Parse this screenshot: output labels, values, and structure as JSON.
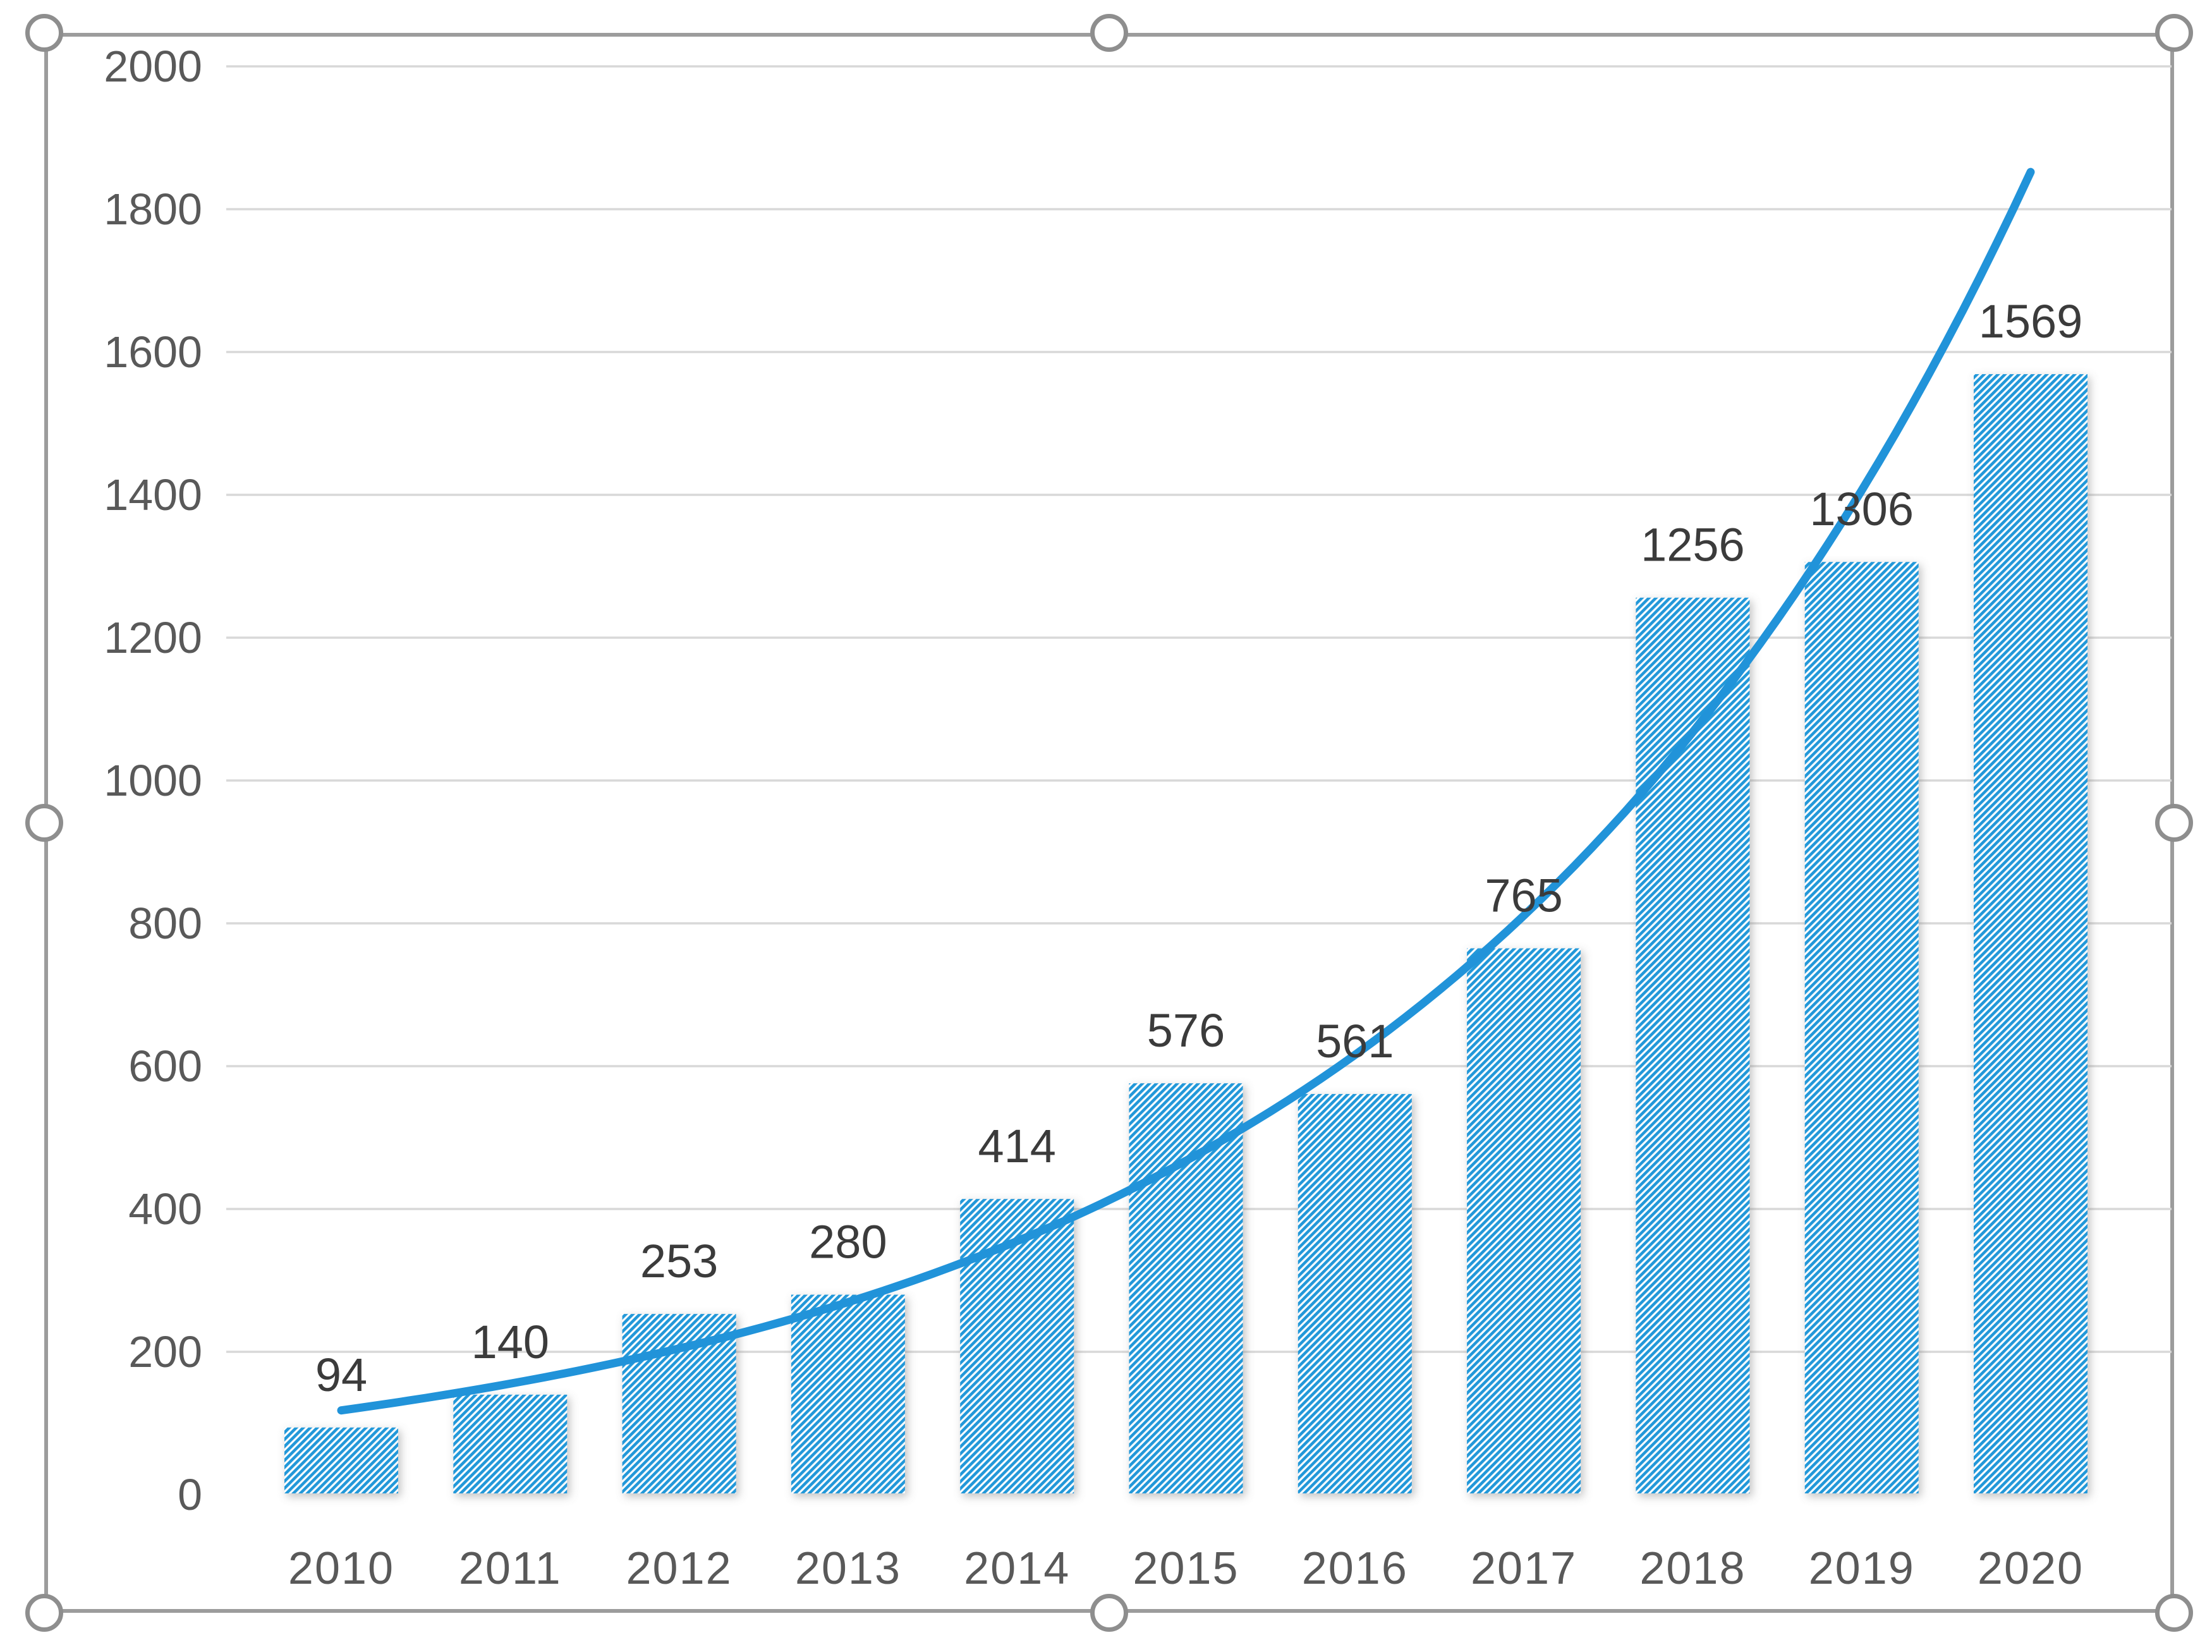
{
  "chart_data": {
    "type": "bar",
    "title": "",
    "xlabel": "",
    "ylabel": "",
    "categories": [
      "2010",
      "2011",
      "2012",
      "2013",
      "2014",
      "2015",
      "2016",
      "2017",
      "2018",
      "2019",
      "2020"
    ],
    "values": [
      94,
      140,
      253,
      280,
      414,
      576,
      561,
      765,
      1256,
      1306,
      1569
    ],
    "data_labels": [
      "94",
      "140",
      "253",
      "280",
      "414",
      "576",
      "561",
      "765",
      "1256",
      "1306",
      "1569"
    ],
    "series": [
      {
        "name": "bars-hatched",
        "type": "bar",
        "values": [
          94,
          140,
          253,
          280,
          414,
          576,
          561,
          765,
          1256,
          1306,
          1569
        ]
      },
      {
        "name": "trend-curve",
        "type": "line",
        "shape": "exponential",
        "start_value": 118,
        "end_value": 1852
      }
    ],
    "ylim": [
      0,
      2000
    ],
    "y_tick_step": 200,
    "y_tick_labels": [
      "0",
      "200",
      "400",
      "600",
      "800",
      "1000",
      "1200",
      "1400",
      "1600",
      "1800",
      "2000"
    ],
    "grid": true,
    "legend": false,
    "colors": {
      "bar_hatch_blue": "#2498d9",
      "trend_line_blue": "#2193d9",
      "gridline": "#d8d8d8",
      "axis_line": "#c6c6c6",
      "data_label": "#3b3b3b",
      "axis_label": "#595959",
      "chart_border": "#9c9c9c",
      "selection_handle": "#8e8e8e",
      "background": "#ffffff"
    }
  },
  "selection": {
    "state": "chart-object-selected",
    "handle_positions": [
      "top-left",
      "top-center",
      "top-right",
      "middle-left",
      "middle-right",
      "bottom-left",
      "bottom-center",
      "bottom-right"
    ]
  }
}
